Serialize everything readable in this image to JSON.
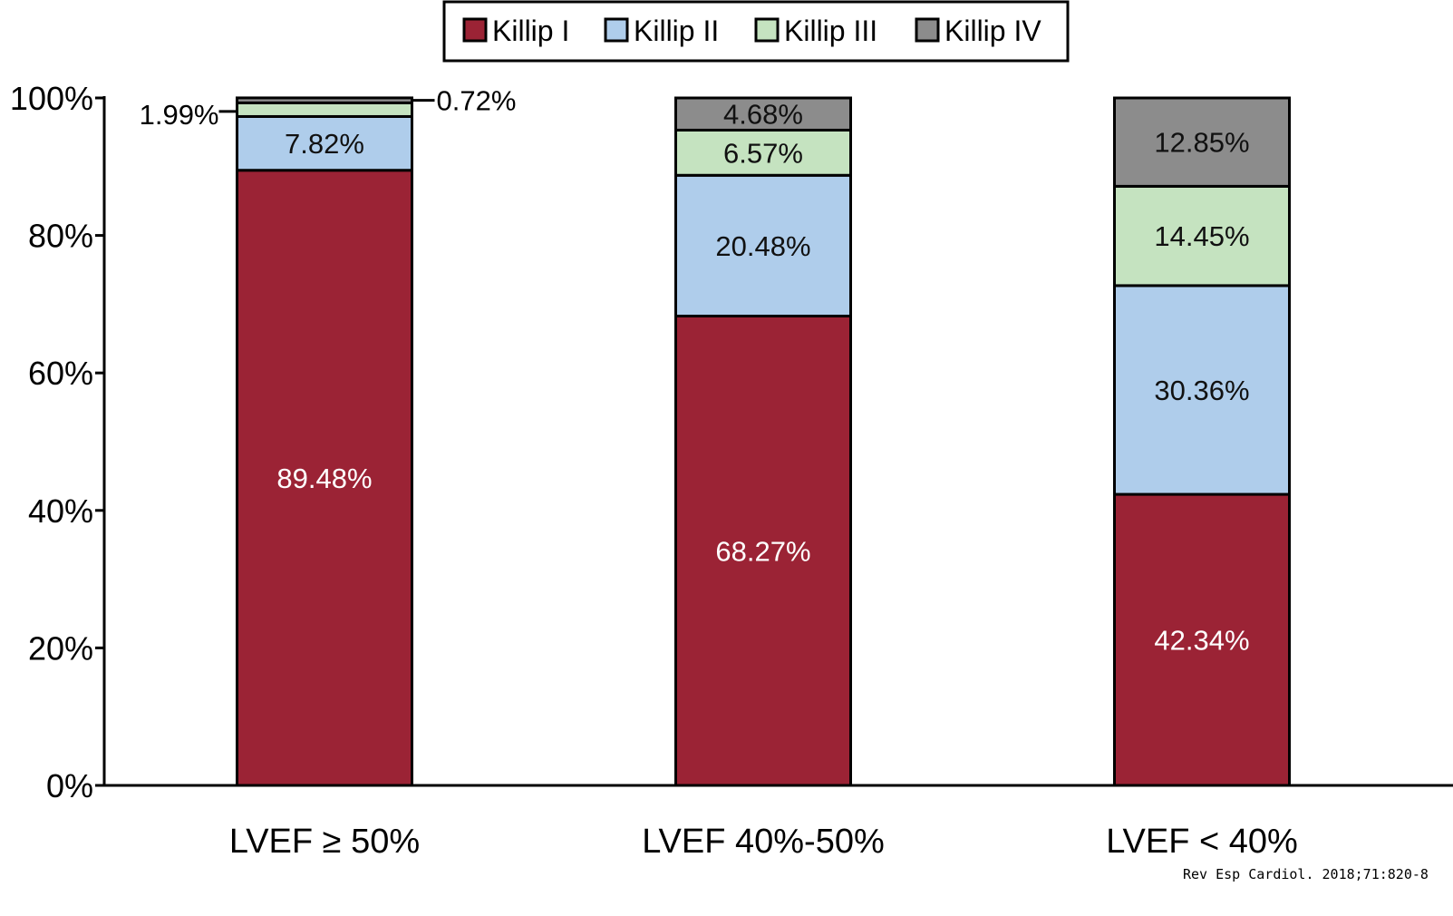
{
  "chart_data": {
    "type": "bar",
    "stacked": true,
    "categories": [
      "LVEF ≥ 50%",
      "LVEF 40%-50%",
      "LVEF < 40%"
    ],
    "series": [
      {
        "name": "Killip I",
        "color": "#9B2335",
        "values": [
          89.48,
          68.27,
          42.34
        ],
        "labels": [
          "89.48%",
          "68.27%",
          "42.34%"
        ]
      },
      {
        "name": "Killip II",
        "color": "#AFCDEB",
        "values": [
          7.82,
          20.48,
          30.36
        ],
        "labels": [
          "7.82%",
          "20.48%",
          "30.36%"
        ]
      },
      {
        "name": "Killip III",
        "color": "#C5E3C0",
        "values": [
          1.99,
          6.57,
          14.45
        ],
        "labels": [
          "1.99%",
          "6.57%",
          "14.45%"
        ]
      },
      {
        "name": "Killip IV",
        "color": "#8C8C8C",
        "values": [
          0.72,
          4.68,
          12.85
        ],
        "labels": [
          "0.72%",
          "4.68%",
          "12.85%"
        ]
      }
    ],
    "ylim": [
      0,
      100
    ],
    "yticks": [
      "0%",
      "20%",
      "40%",
      "60%",
      "80%",
      "100%"
    ],
    "grid": false,
    "legend_position": "top-center"
  },
  "source": "Rev Esp Cardiol. 2018;71:820-8"
}
